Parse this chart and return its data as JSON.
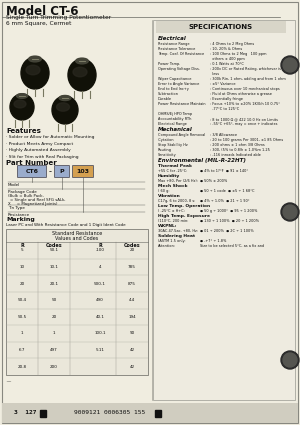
{
  "title": "Model CT-6",
  "subtitle_line1": "Single Turn Trimming Potentiometer",
  "subtitle_line2": "6 mm Square, Cermet",
  "bg_color": "#e8e6de",
  "specs_title": "SPECIFICATIONS",
  "features_title": "Features",
  "features": [
    "· Solder or Allow for Automatic Mounting",
    "· Product Meets Army Compact",
    "· Highly Automated Assembly",
    "· Slit for Trim with Real Packaging"
  ],
  "part_number_title": "Part Number",
  "marking_title": "Marking",
  "marking_text": "Laser PC and With Resistance Code and 1 Digit Ident Code",
  "table_title1": "Standard Resistance",
  "table_title2": "Values and Codes",
  "table_headers": [
    "R",
    "Codes",
    "R",
    "Codes"
  ],
  "table_rows": [
    [
      "5",
      "50.1",
      ".100",
      "20"
    ],
    [
      "10",
      "10.1",
      "4",
      "785"
    ],
    [
      "20",
      "20.1",
      "500-1",
      "875"
    ],
    [
      "50.4",
      "50",
      "490",
      "4.4"
    ],
    [
      "50.5",
      "20",
      "40.1",
      "194"
    ],
    [
      "1",
      "1",
      "100.1",
      "90"
    ],
    [
      "6.7",
      "497",
      "5.11",
      "42"
    ],
    [
      "20.8",
      "200",
      "",
      "42"
    ]
  ],
  "bottom_text": "3  127",
  "bottom_barcode": "9009121 0006305 155",
  "elec_label": "Electrical",
  "mech_label": "Mechanical",
  "env_label": "Environmental (MIL-R-22HT)",
  "elec_rows": [
    [
      "Resistance Range",
      ": 4 Ohms to 2 Meg Ohms"
    ],
    [
      "Resistance Tolerance",
      ": 10, 20% & Ohms"
    ],
    [
      "Temp. Coef. Of Resistance",
      ": 100 Ohms to 2 Meg   100 ppm"
    ],
    [
      "",
      "  others ± 400 ppm"
    ],
    [
      "Power Temp.",
      ": 0.1 Watts at 70°C"
    ],
    [
      "Operating Voltage Diss.",
      ": 200v DC or Rated Rating, whichever is"
    ],
    [
      "",
      "  less"
    ],
    [
      "Wiper Capacitance",
      ": 300k Rin, 1 ohm, adding and from 1 ohm"
    ],
    [
      "Error to Angle Variance",
      ": ±5° Variance"
    ],
    [
      "End to End Inc+y",
      ": Continuous over 10 mechanical stops"
    ],
    [
      "Subtraction",
      ": Fluid at Ohms otherwise a grease"
    ],
    [
      "Durable",
      ": Essentially fringe"
    ],
    [
      "Power Resistance Maintain",
      ": Focus +10% to ±20% 1K/0/h 10 0.75°"
    ],
    [
      "",
      "  -77°C to 125°C"
    ],
    [
      "OHMS/Ej HPO Temp",
      ""
    ],
    [
      "Accountability RTh",
      ": 8 to 1000 Ω @ 422 10.0 Hz on Limits"
    ],
    [
      "Electrical Range",
      ": -55°C +65°, may = once + indicates"
    ]
  ],
  "mech_rows": [
    [
      "Compound Angle Removal",
      ": 3/8 Allowance"
    ],
    [
      "-Cytation",
      ": 20 to 100 grams Per 3001, ±1 85 Ohms"
    ],
    [
      "Stop Stability Hz",
      ": 200 ohms ± 1 ohm 3/8 Ohms"
    ],
    [
      "Routing",
      ": 300, (5% to 0.8/h ± 1.0%m 1.25"
    ],
    [
      "Sensitivity",
      ": -116 inroads Indicated able"
    ]
  ],
  "env_rows": [
    [
      "Thermal Peak",
      null
    ],
    [
      "+55 C for -25°C:",
      "● 4% to 1?°F  ● 91 ± 140°"
    ],
    [
      "Humidity",
      null
    ],
    [
      "Max +80, Per (2/6 Hz):",
      "● 50% ± 200%"
    ],
    [
      "Mech Shock",
      null
    ],
    [
      "( 60 g:",
      "● 50 ÷ 1 code  ● ±5 ÷ 1 68°C"
    ],
    [
      "Vibration",
      null
    ],
    [
      "C17g, 6 to 2000, 8 s:",
      "● 4% ÷ 1.0%  ● 21 ÷ 1 90°"
    ],
    [
      "Low Temp. Operation",
      null
    ],
    [
      "( -25°C ± H+C:",
      "● 50 g ÷ 1000°  ● 95 ÷ 1 200%"
    ],
    [
      "High Temp. Exposure",
      null
    ],
    [
      "(110°C, 200 min:",
      "● 130 ÷ 1 100%  ● 20 ÷ 1 200%"
    ],
    [
      "WKPNL:",
      null
    ],
    [
      "30AC.47.5ac, +80, Hz:",
      "● 01 ÷ 200%  ● 2C ÷ 1 100%"
    ],
    [
      "Soldering Heat",
      null
    ],
    [
      "(ASTM 1.5 only:",
      "● -+7° ÷ 1.8%"
    ],
    [
      "Attention:",
      "Size to be selected 5°C, as a fix and"
    ]
  ]
}
